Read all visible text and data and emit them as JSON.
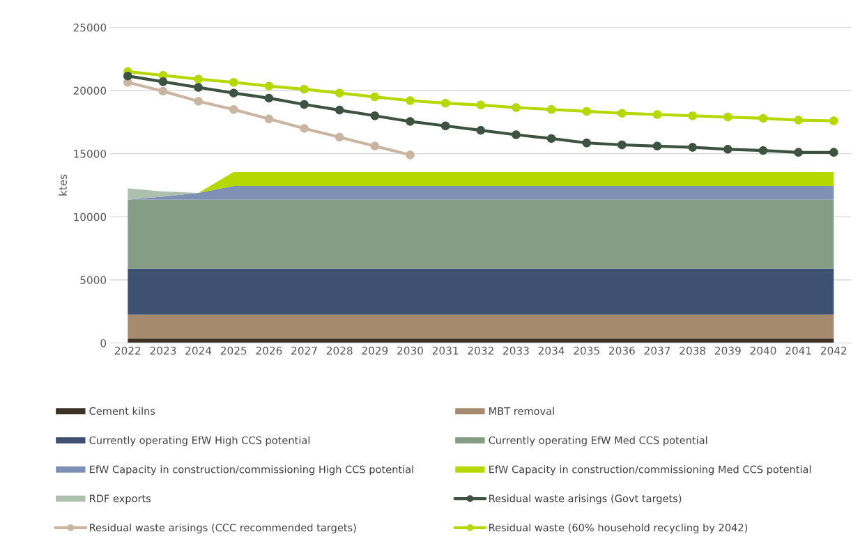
{
  "chart_data": {
    "type": "area",
    "ylabel": "ktes",
    "stacked": true,
    "categories": [
      "2022",
      "2023",
      "2024",
      "2025",
      "2026",
      "2027",
      "2028",
      "2029",
      "2030",
      "2031",
      "2032",
      "2033",
      "2034",
      "2035",
      "2036",
      "2037",
      "2038",
      "2039",
      "2040",
      "2041",
      "2042"
    ],
    "ylim": [
      0,
      25000
    ],
    "yticks": [
      0,
      5000,
      10000,
      15000,
      20000,
      25000
    ],
    "grid": "y",
    "legend": "bottom",
    "series": [
      {
        "name": "Cement kilns",
        "color": "#3d3024",
        "values": [
          350,
          350,
          350,
          350,
          350,
          350,
          350,
          350,
          350,
          350,
          350,
          350,
          350,
          350,
          350,
          350,
          350,
          350,
          350,
          350,
          350
        ]
      },
      {
        "name": "MBT removal",
        "color": "#a68a6d",
        "values": [
          1900,
          1900,
          1900,
          1900,
          1900,
          1900,
          1900,
          1900,
          1900,
          1900,
          1900,
          1900,
          1900,
          1900,
          1900,
          1900,
          1900,
          1900,
          1900,
          1900,
          1900
        ]
      },
      {
        "name": "Currently operating EfW High CCS potential",
        "color": "#3f5170",
        "values": [
          3650,
          3650,
          3650,
          3650,
          3650,
          3650,
          3650,
          3650,
          3650,
          3650,
          3650,
          3650,
          3650,
          3650,
          3650,
          3650,
          3650,
          3650,
          3650,
          3650,
          3650
        ]
      },
      {
        "name": "Currently operating EfW Med CCS potential",
        "color": "#859d84",
        "values": [
          5450,
          5450,
          5450,
          5450,
          5450,
          5450,
          5450,
          5450,
          5450,
          5450,
          5450,
          5450,
          5450,
          5450,
          5450,
          5450,
          5450,
          5450,
          5450,
          5450,
          5450
        ]
      },
      {
        "name": "EfW Capacity in construction/commissioning High CCS potential",
        "color": "#7f90b5",
        "values": [
          0,
          250,
          550,
          1100,
          1100,
          1100,
          1100,
          1100,
          1100,
          1100,
          1100,
          1100,
          1100,
          1100,
          1100,
          1100,
          1100,
          1100,
          1100,
          1100,
          1100
        ]
      },
      {
        "name": "EfW Capacity in construction/commissioning Med CCS potential",
        "color": "#b5d800",
        "values": [
          0,
          0,
          0,
          1100,
          1100,
          1100,
          1100,
          1100,
          1100,
          1100,
          1100,
          1100,
          1100,
          1100,
          1100,
          1100,
          1100,
          1100,
          1100,
          1100,
          1100
        ]
      },
      {
        "name": "RDF exports",
        "color": "#adbfad",
        "values": [
          900,
          400,
          0,
          null,
          null,
          null,
          null,
          null,
          null,
          null,
          null,
          null,
          null,
          null,
          null,
          null,
          null,
          null,
          null,
          null,
          null
        ]
      },
      {
        "name": "Residual waste arisings (Govt targets)",
        "type": "line",
        "marker": "circle",
        "color": "#3d5240",
        "values": [
          21150,
          20700,
          20250,
          19800,
          19400,
          18900,
          18450,
          18000,
          17550,
          17200,
          16850,
          16500,
          16200,
          15850,
          15700,
          15600,
          15500,
          15350,
          15250,
          15100,
          15100
        ]
      },
      {
        "name": "Residual waste arisings (CCC recommended targets)",
        "type": "line",
        "marker": "circle",
        "color": "#c9b5a0",
        "values": [
          20650,
          19950,
          19150,
          18500,
          17750,
          17000,
          16300,
          15600,
          14900,
          null,
          null,
          null,
          null,
          null,
          null,
          null,
          null,
          null,
          null,
          null,
          null
        ]
      },
      {
        "name": "Residual waste (60% household recycling by 2042)",
        "type": "line",
        "marker": "circle",
        "color": "#b5d800",
        "values": [
          21500,
          21200,
          20900,
          20650,
          20350,
          20100,
          19800,
          19500,
          19200,
          19000,
          18850,
          18650,
          18500,
          18350,
          18200,
          18100,
          18000,
          17900,
          17800,
          17650,
          17600
        ]
      }
    ]
  }
}
